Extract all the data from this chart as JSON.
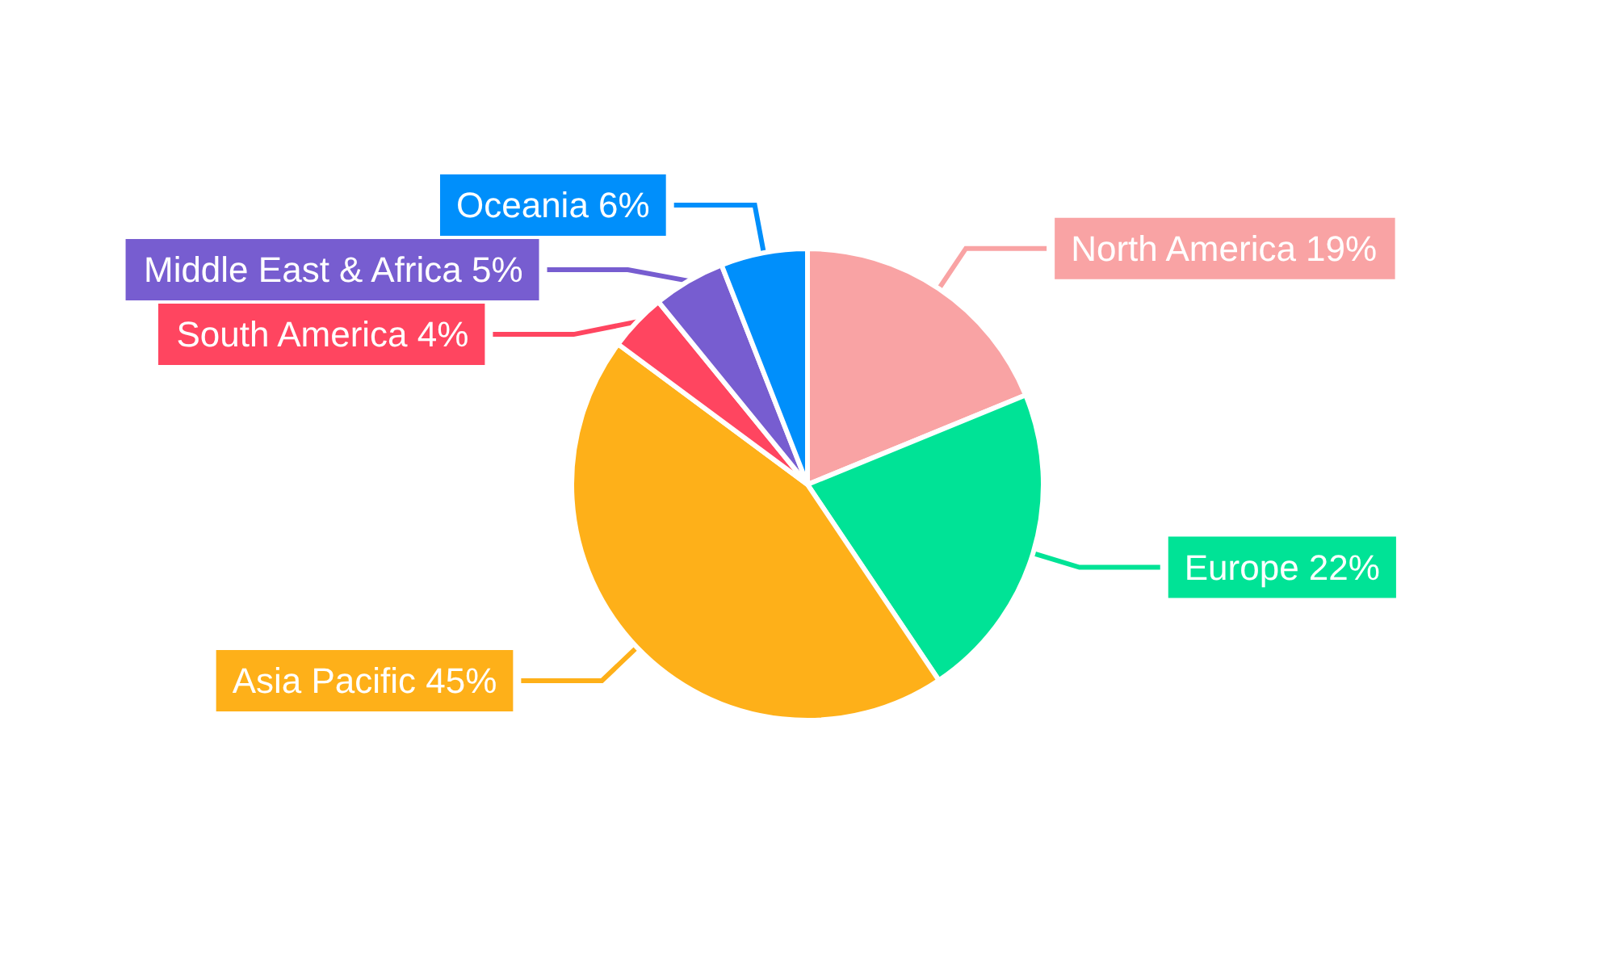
{
  "chart_data": {
    "type": "pie",
    "categories": [
      "North America",
      "Europe",
      "Asia Pacific",
      "South America",
      "Middle East & Africa",
      "Oceania"
    ],
    "values": [
      19,
      22,
      45,
      4,
      5,
      6
    ],
    "value_labels": [
      "19%",
      "22%",
      "45%",
      "4%",
      "5%",
      "6%"
    ],
    "colors": [
      "#f9a3a4",
      "#00e396",
      "#feb019",
      "#ff4560",
      "#775dd0",
      "#008ffb"
    ],
    "legend": false
  }
}
